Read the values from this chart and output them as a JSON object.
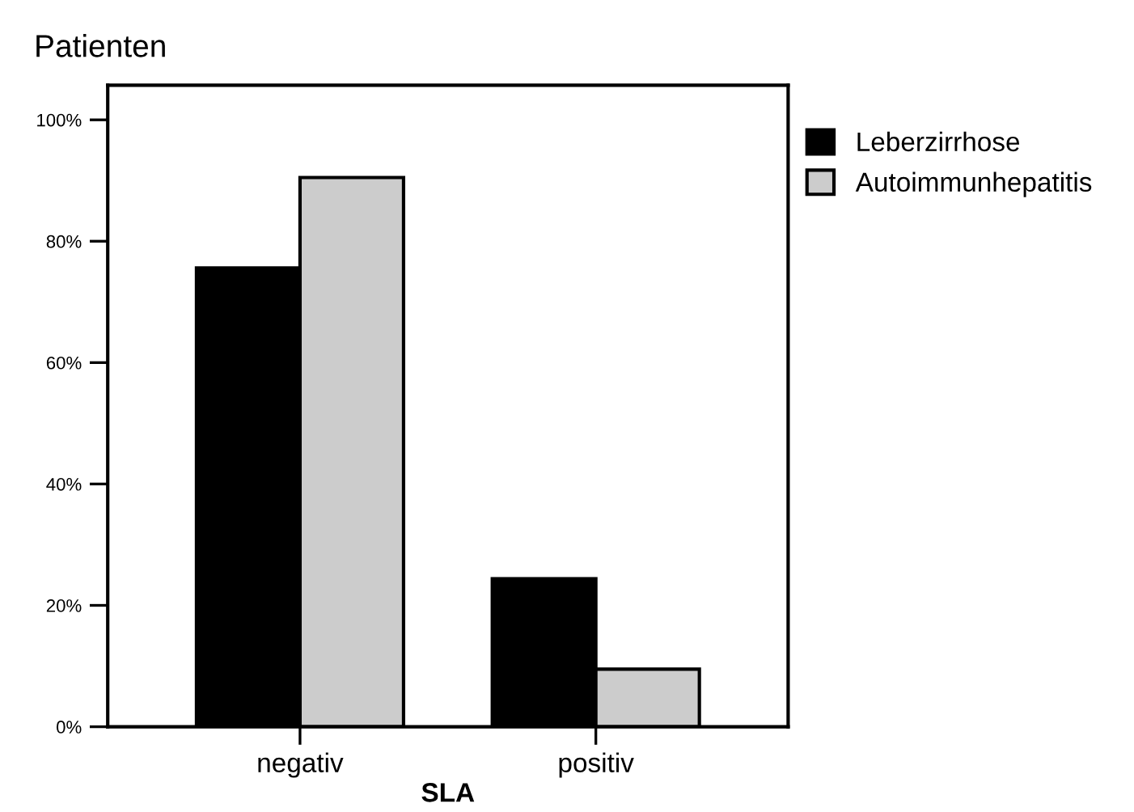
{
  "chart_data": {
    "type": "bar",
    "title": "Patienten",
    "xlabel": "SLA",
    "categories": [
      "negativ",
      "positiv"
    ],
    "series": [
      {
        "name": "Leberzirrhose",
        "color": "#000000",
        "values": [
          75.6,
          24.4
        ]
      },
      {
        "name": "Autoimmunhepatitis",
        "color": "#cccccc",
        "values": [
          90.5,
          9.5
        ]
      }
    ],
    "ylim": [
      0,
      105.7
    ],
    "yticks": [
      {
        "value": 0,
        "label": "0%"
      },
      {
        "value": 20,
        "label": "20%"
      },
      {
        "value": 40,
        "label": "40%"
      },
      {
        "value": 60,
        "label": "60%"
      },
      {
        "value": 80,
        "label": "80%"
      },
      {
        "value": 100,
        "label": "100%"
      }
    ],
    "grid": false,
    "legend": "top right"
  }
}
